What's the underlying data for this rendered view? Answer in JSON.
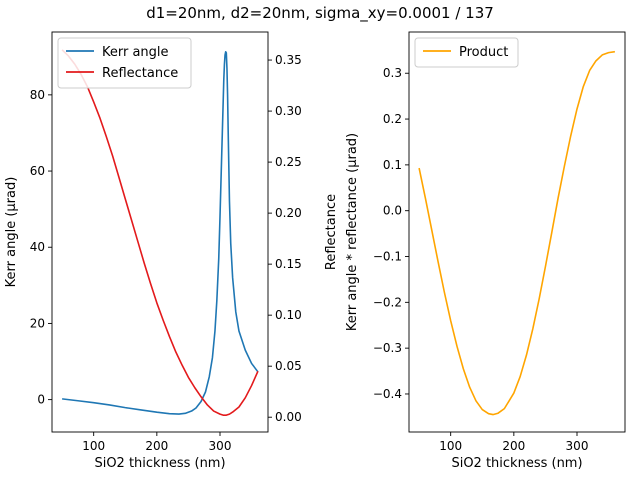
{
  "figure": {
    "title": "d1=20nm, d2=20nm, sigma_xy=0.0001 / 137"
  },
  "chart_data": [
    {
      "type": "line",
      "xlabel": "SiO2 thickness (nm)",
      "ylabel": "Kerr angle (µrad)",
      "ylabel_right": "Reflectance",
      "xlim": [
        34,
        376
      ],
      "ylim": [
        -8.5,
        96.5
      ],
      "ylim_right": [
        -0.0145,
        0.3775
      ],
      "x_ticks": [
        100,
        200,
        300
      ],
      "y_ticks": [
        0,
        20,
        40,
        60,
        80
      ],
      "y_ticks_right": [
        0.0,
        0.05,
        0.1,
        0.15,
        0.2,
        0.25,
        0.3,
        0.35
      ],
      "y_ticks_right_labels": [
        "0.00",
        "0.05",
        "0.10",
        "0.15",
        "0.20",
        "0.25",
        "0.30",
        "0.35"
      ],
      "legend": {
        "placement": "top-left",
        "entries": [
          "Kerr angle",
          "Reflectance"
        ]
      },
      "grid": false,
      "series": [
        {
          "name": "Kerr angle",
          "axis": "left",
          "color": "#1f77b4",
          "x": [
            50,
            75,
            100,
            125,
            150,
            175,
            200,
            220,
            235,
            245,
            255,
            262,
            270,
            277,
            283,
            288,
            292,
            295,
            298,
            300,
            302,
            304,
            305,
            306,
            307,
            308,
            309,
            310,
            311,
            312,
            313,
            314,
            315,
            317,
            320,
            325,
            330,
            340,
            350,
            360
          ],
          "values": [
            0.2,
            -0.3,
            -0.8,
            -1.4,
            -2.1,
            -2.7,
            -3.3,
            -3.7,
            -3.8,
            -3.6,
            -3.0,
            -2.2,
            -0.5,
            2.0,
            6.0,
            11.0,
            18.0,
            26.0,
            37.0,
            48.0,
            60.0,
            72.0,
            78.0,
            84.0,
            88.0,
            90.5,
            91.3,
            91.0,
            87.0,
            80.0,
            70.0,
            61.0,
            52.0,
            41.0,
            32.0,
            23.0,
            18.0,
            13.0,
            9.5,
            7.3
          ]
        },
        {
          "name": "Reflectance",
          "axis": "right",
          "color": "#e31a1c",
          "x": [
            50,
            60,
            70,
            80,
            90,
            100,
            110,
            120,
            130,
            140,
            150,
            160,
            170,
            180,
            190,
            200,
            210,
            220,
            230,
            240,
            250,
            260,
            270,
            280,
            290,
            300,
            305,
            310,
            315,
            320,
            330,
            340,
            350,
            360
          ],
          "values": [
            0.36,
            0.354,
            0.346,
            0.336,
            0.324,
            0.309,
            0.293,
            0.275,
            0.256,
            0.235,
            0.214,
            0.193,
            0.172,
            0.151,
            0.131,
            0.112,
            0.095,
            0.079,
            0.064,
            0.051,
            0.039,
            0.029,
            0.02,
            0.012,
            0.006,
            0.003,
            0.002,
            0.002,
            0.003,
            0.005,
            0.01,
            0.019,
            0.031,
            0.045
          ]
        }
      ]
    },
    {
      "type": "line",
      "xlabel": "SiO2 thickness (nm)",
      "ylabel": "Kerr angle * reflectance (µrad)",
      "xlim": [
        34,
        376
      ],
      "ylim": [
        -0.483,
        0.39
      ],
      "x_ticks": [
        100,
        200,
        300
      ],
      "y_ticks": [
        -0.4,
        -0.3,
        -0.2,
        -0.1,
        0.0,
        0.1,
        0.2,
        0.3
      ],
      "y_tick_labels": [
        "−0.4",
        "−0.3",
        "−0.2",
        "−0.1",
        "0.0",
        "0.1",
        "0.2",
        "0.3"
      ],
      "legend": {
        "placement": "top-left",
        "entries": [
          "Product"
        ]
      },
      "grid": false,
      "series": [
        {
          "name": "Product",
          "axis": "left",
          "color": "#ffa500",
          "x": [
            50,
            60,
            70,
            80,
            90,
            100,
            110,
            120,
            130,
            140,
            150,
            160,
            167,
            175,
            185,
            200,
            210,
            220,
            230,
            240,
            250,
            260,
            270,
            280,
            290,
            300,
            310,
            320,
            330,
            340,
            350,
            360
          ],
          "values": [
            0.093,
            0.027,
            -0.042,
            -0.111,
            -0.178,
            -0.24,
            -0.296,
            -0.345,
            -0.385,
            -0.415,
            -0.434,
            -0.443,
            -0.445,
            -0.442,
            -0.432,
            -0.398,
            -0.362,
            -0.315,
            -0.258,
            -0.193,
            -0.122,
            -0.048,
            0.027,
            0.097,
            0.163,
            0.222,
            0.271,
            0.306,
            0.327,
            0.34,
            0.345,
            0.347
          ]
        }
      ]
    }
  ]
}
